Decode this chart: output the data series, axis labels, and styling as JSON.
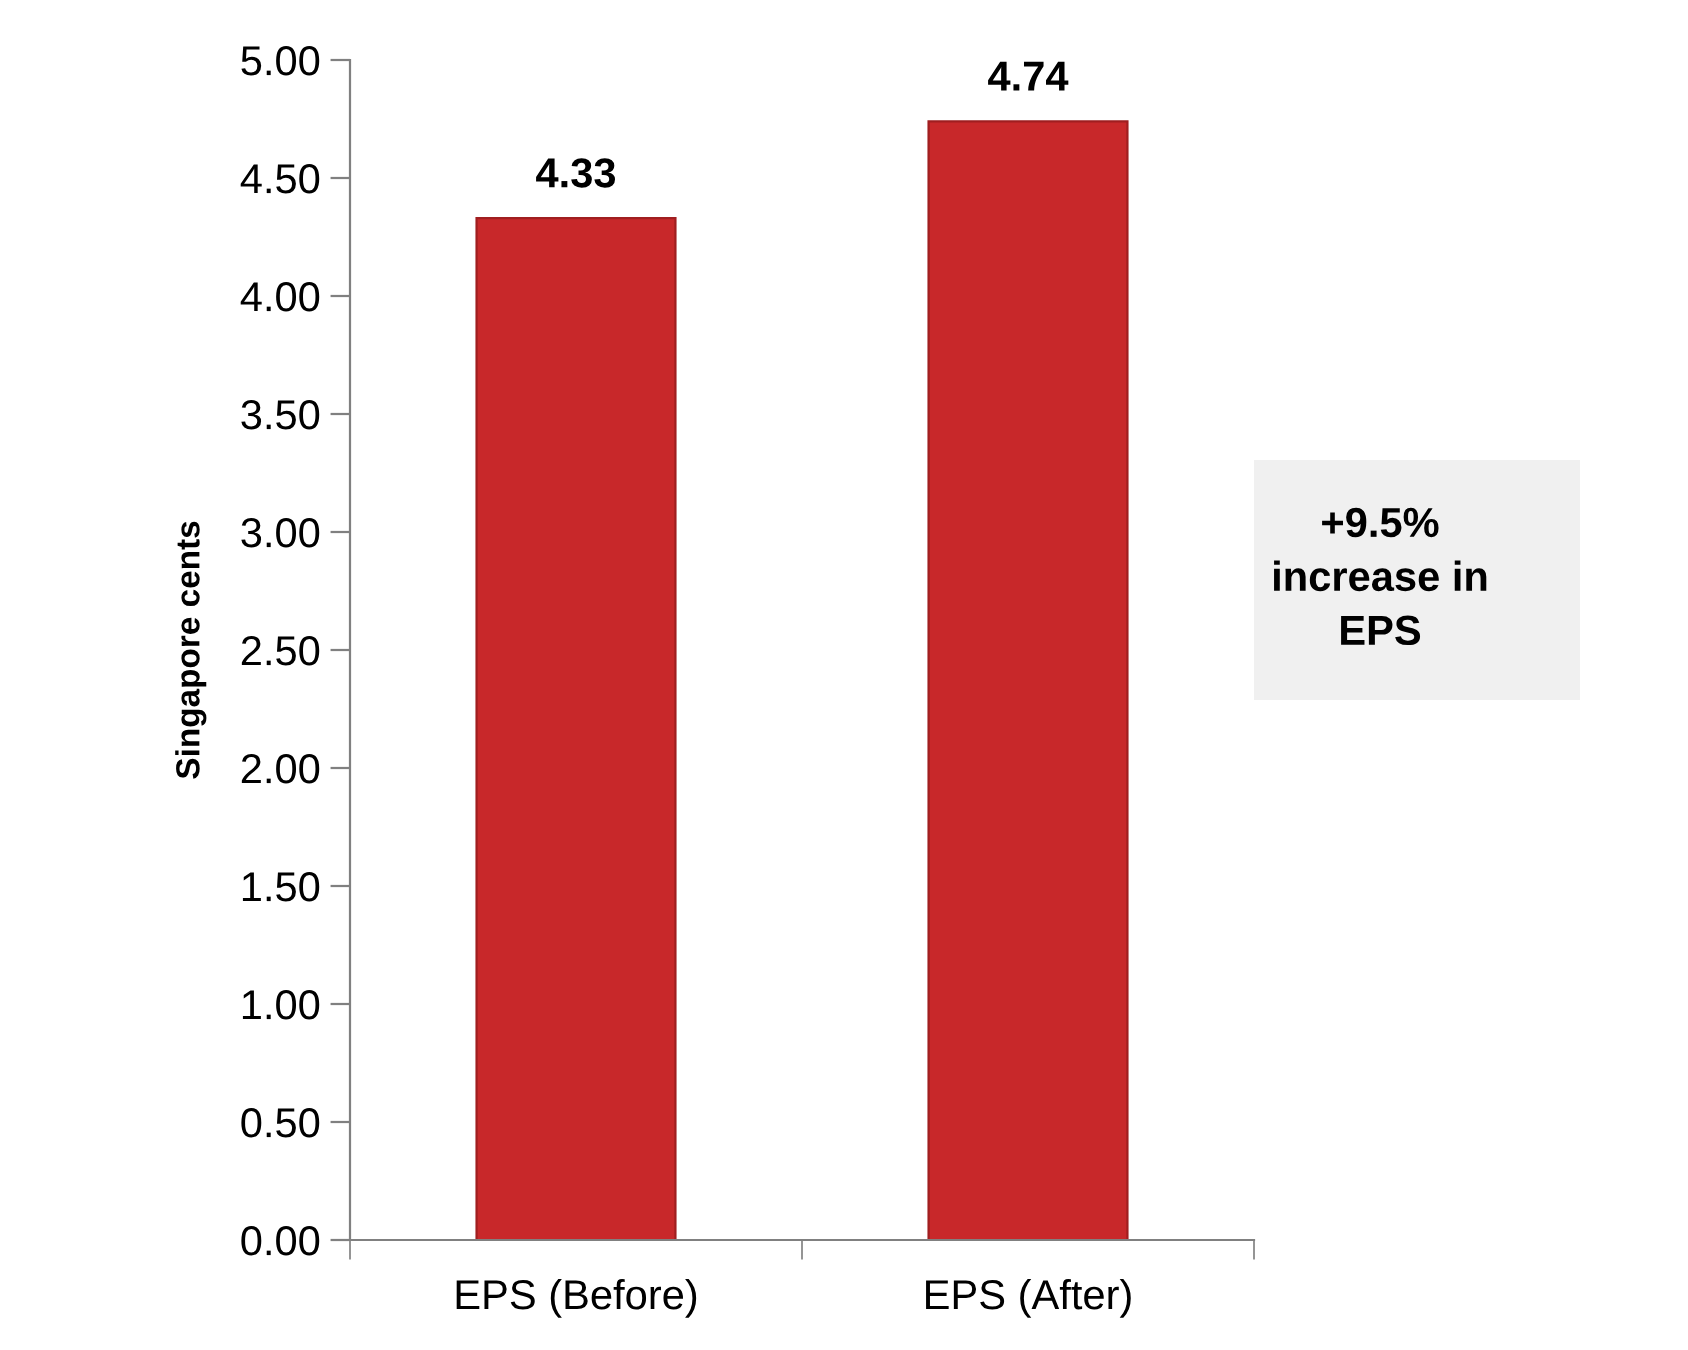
{
  "chart_data": {
    "type": "bar",
    "ylabel": "Singapore cents",
    "categories": [
      "EPS (Before)",
      "EPS (After)"
    ],
    "values": [
      4.33,
      4.74
    ],
    "color": "#c8282a",
    "ylim": [
      0,
      5
    ],
    "yticks": [
      {
        "value": 0,
        "label": "0.00"
      },
      {
        "value": 0.5,
        "label": "0.50"
      },
      {
        "value": 1,
        "label": "1.00"
      },
      {
        "value": 1.5,
        "label": "1.50"
      },
      {
        "value": 2,
        "label": "2.00"
      },
      {
        "value": 2.5,
        "label": "2.50"
      },
      {
        "value": 3,
        "label": "3.00"
      },
      {
        "value": 3.5,
        "label": "3.50"
      },
      {
        "value": 4,
        "label": "4.00"
      },
      {
        "value": 4.5,
        "label": "4.50"
      },
      {
        "value": 5,
        "label": "5.00"
      }
    ],
    "data_labels": true,
    "grid": false,
    "legend": false,
    "annotations": [
      "+9.5%\nincrease in\nEPS"
    ]
  }
}
